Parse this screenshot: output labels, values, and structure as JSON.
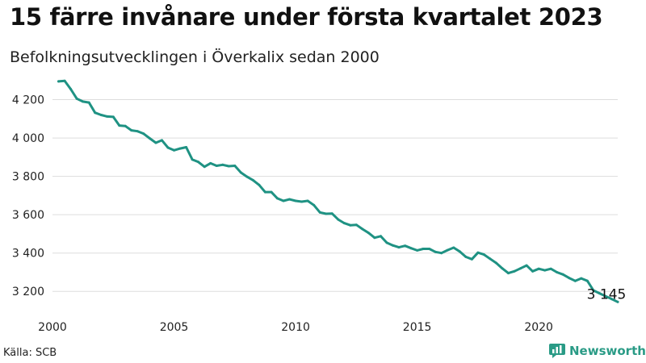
{
  "header": {
    "title": "15 färre invånare under första kvartalet 2023",
    "subtitle": "Befolkningsutvecklingen i Överkalix sedan 2000"
  },
  "footer": {
    "source": "Källa: SCB",
    "brand": "Newsworthy",
    "brand_icon": "bar-chart-logo-icon"
  },
  "colors": {
    "line": "#1f9283",
    "grid": "#dddddd",
    "brand": "#2a9b86"
  },
  "chart_data": {
    "type": "line",
    "title": "15 färre invånare under första kvartalet 2023",
    "subtitle": "Befolkningsutvecklingen i Överkalix sedan 2000",
    "xlabel": "",
    "ylabel": "",
    "x_ticks": [
      2000,
      2005,
      2010,
      2015,
      2020
    ],
    "y_ticks": [
      3200,
      3400,
      3600,
      3800,
      4000,
      4200
    ],
    "y_tick_labels": [
      "3 200",
      "3 400",
      "3 600",
      "3 800",
      "4 000",
      "4 200"
    ],
    "xlim": [
      2000,
      2023.25
    ],
    "ylim": [
      3100,
      4320
    ],
    "grid": "horizontal",
    "legend": "none",
    "end_label": "3 145",
    "series": [
      {
        "x": [
          2000.25,
          2000.5,
          2000.75,
          2001,
          2001.25,
          2001.5,
          2001.75,
          2002,
          2002.25,
          2002.5,
          2002.75,
          2003,
          2003.25,
          2003.5,
          2003.75,
          2004,
          2004.25,
          2004.5,
          2004.75,
          2005,
          2005.25,
          2005.5,
          2005.75,
          2006,
          2006.25,
          2006.5,
          2006.75,
          2007,
          2007.25,
          2007.5,
          2007.75,
          2008,
          2008.25,
          2008.5,
          2008.75,
          2009,
          2009.25,
          2009.5,
          2009.75,
          2010,
          2010.25,
          2010.5,
          2010.75,
          2011,
          2011.25,
          2011.5,
          2011.75,
          2012,
          2012.25,
          2012.5,
          2012.75,
          2013,
          2013.25,
          2013.5,
          2013.75,
          2014,
          2014.25,
          2014.5,
          2014.75,
          2015,
          2015.25,
          2015.5,
          2015.75,
          2016,
          2016.25,
          2016.5,
          2016.75,
          2017,
          2017.25,
          2017.5,
          2017.75,
          2018,
          2018.25,
          2018.5,
          2018.75,
          2019,
          2019.25,
          2019.5,
          2019.75,
          2020,
          2020.25,
          2020.5,
          2020.75,
          2021,
          2021.25,
          2021.5,
          2021.75,
          2022,
          2022.25,
          2022.5,
          2022.75,
          2023,
          2023.25
        ],
        "y": [
          4295,
          4298,
          4255,
          4205,
          4190,
          4185,
          4132,
          4120,
          4112,
          4110,
          4065,
          4062,
          4040,
          4035,
          4022,
          3998,
          3975,
          3988,
          3950,
          3936,
          3945,
          3952,
          3888,
          3875,
          3850,
          3868,
          3855,
          3860,
          3853,
          3855,
          3820,
          3798,
          3780,
          3755,
          3718,
          3718,
          3685,
          3672,
          3680,
          3672,
          3668,
          3672,
          3650,
          3612,
          3605,
          3606,
          3575,
          3556,
          3545,
          3547,
          3525,
          3505,
          3480,
          3488,
          3454,
          3440,
          3430,
          3438,
          3425,
          3414,
          3422,
          3422,
          3406,
          3400,
          3415,
          3428,
          3408,
          3380,
          3368,
          3402,
          3392,
          3370,
          3348,
          3320,
          3295,
          3305,
          3320,
          3335,
          3305,
          3318,
          3310,
          3318,
          3300,
          3288,
          3270,
          3255,
          3268,
          3255,
          3205,
          3190,
          3175,
          3160,
          3145
        ]
      }
    ]
  }
}
